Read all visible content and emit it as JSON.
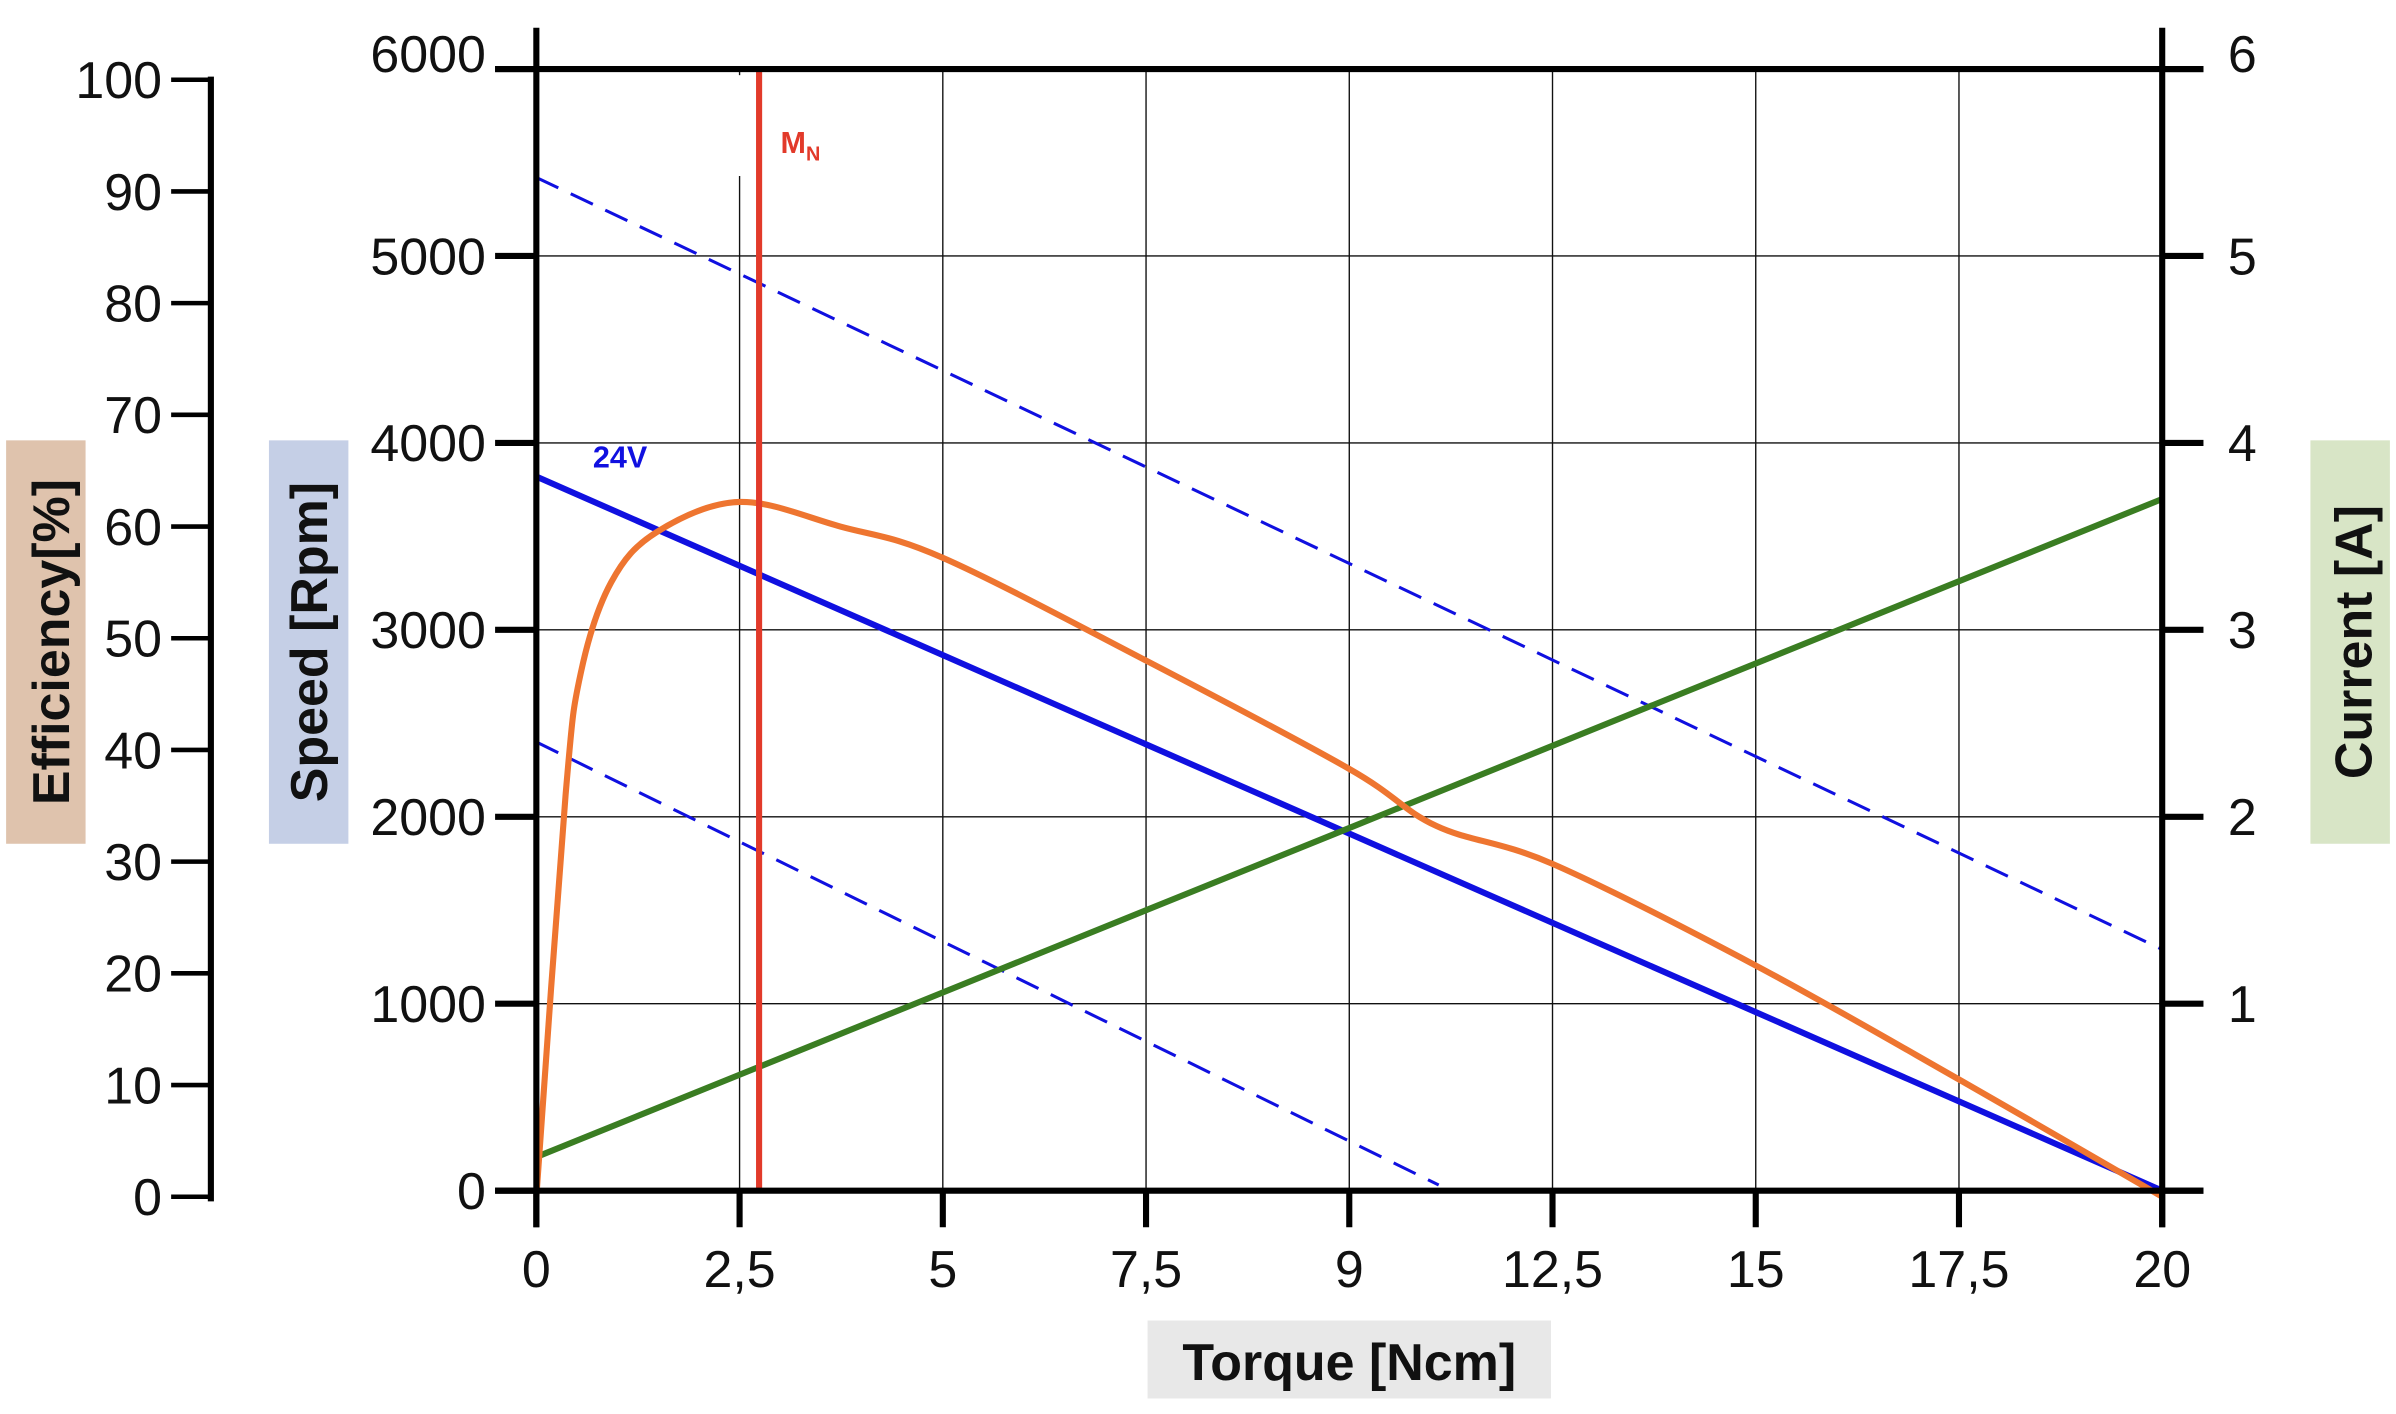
{
  "chart_data": {
    "type": "line",
    "xlabel": "Torque [Ncm]",
    "x_ticks": [
      "0",
      "2,5",
      "5",
      "7,5",
      "9",
      "12,5",
      "15",
      "17,5",
      "20"
    ],
    "xlim": [
      0,
      20
    ],
    "grid": true,
    "axes": {
      "efficiency": {
        "label": "Efficiency[%]",
        "ylim": [
          0,
          100
        ],
        "ticks": [
          "0",
          "10",
          "20",
          "30",
          "40",
          "50",
          "60",
          "70",
          "80",
          "90",
          "100"
        ],
        "label_bg": "#dfc3ad"
      },
      "speed": {
        "label": "Speed [Rpm]",
        "ylim": [
          0,
          6000
        ],
        "ticks": [
          "0",
          "1000",
          "2000",
          "3000",
          "4000",
          "5000",
          "6000"
        ],
        "label_bg": "#c5cfe6"
      },
      "current": {
        "label": "Current [A]",
        "ylim": [
          0,
          6
        ],
        "ticks": [
          "",
          "1",
          "2",
          "3",
          "4",
          "5",
          "6"
        ],
        "label_bg": "#d8e5c6"
      }
    },
    "xlabel_bg": "#e8e8e8",
    "series": [
      {
        "name": "24V",
        "axis": "speed",
        "color": "#1010e0",
        "style": "solid",
        "x": [
          0,
          20
        ],
        "y": [
          3820,
          0
        ]
      },
      {
        "axis": "speed",
        "color": "#1010e0",
        "style": "dashed",
        "x": [
          0,
          20
        ],
        "y": [
          5420,
          1290
        ]
      },
      {
        "axis": "speed",
        "color": "#1010e0",
        "style": "dashed",
        "x": [
          0,
          11.1
        ],
        "y": [
          2400,
          30
        ]
      },
      {
        "axis": "current",
        "color": "#3a7d22",
        "style": "solid",
        "x": [
          0,
          20
        ],
        "y": [
          0.18,
          3.7
        ]
      },
      {
        "axis": "efficiency",
        "color": "#ee7530",
        "style": "solid",
        "x": [
          0,
          0.36,
          0.55,
          0.92,
          1.48,
          2.5,
          3.74,
          5,
          7.5,
          10,
          11.07,
          12.5,
          15,
          17.5,
          20
        ],
        "y": [
          0,
          36,
          47,
          55,
          59.5,
          62.2,
          60,
          57.2,
          48,
          38.3,
          33.2,
          29.8,
          20.7,
          10.5,
          0
        ]
      }
    ],
    "annotations": [
      {
        "text": "M",
        "subscript": "N",
        "x": 2.74,
        "type": "vertical-line",
        "color": "#e23a2a"
      }
    ]
  }
}
